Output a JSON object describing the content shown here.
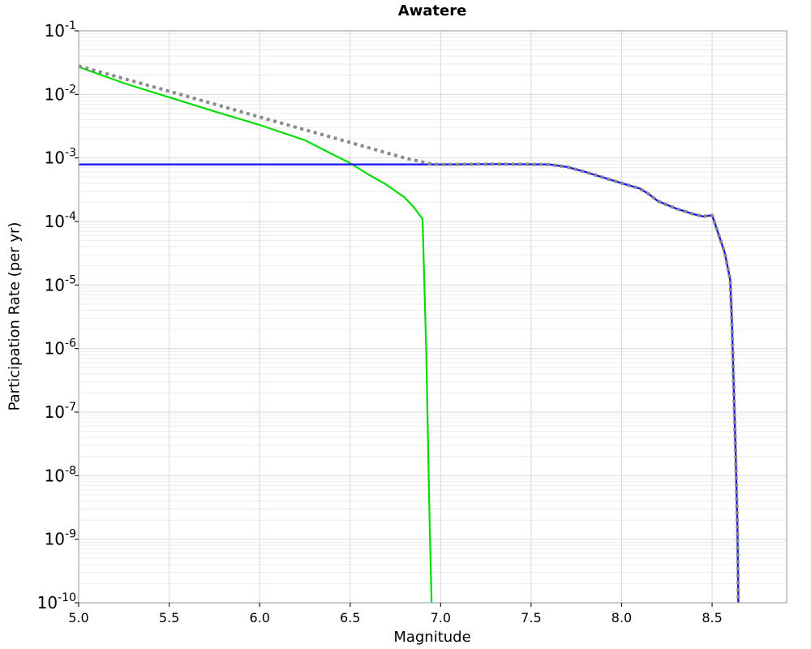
{
  "title": "Awatere",
  "chart_data": {
    "type": "line",
    "title": "Awatere",
    "xlabel": "Magnitude",
    "ylabel": "Participation Rate (per yr)",
    "xlim": [
      5.0,
      8.912
    ],
    "ylim": [
      1e-10,
      0.1
    ],
    "x_ticks": [
      5.0,
      5.5,
      6.0,
      6.5,
      7.0,
      7.5,
      8.0,
      8.5
    ],
    "x_tick_labels": [
      "5.0",
      "5.5",
      "6.0",
      "6.5",
      "7.0",
      "7.5",
      "8.0",
      "8.5"
    ],
    "y_tick_exponents": [
      -1,
      -2,
      -3,
      -4,
      -5,
      -6,
      -7,
      -8,
      -9,
      -10
    ],
    "grid": {
      "major": true,
      "minor_horizontal": true,
      "legend": "none"
    },
    "colors": {
      "major_grid": "#d9d9d9",
      "minor_grid": "#ececec",
      "border": "#a6a6a6",
      "tick": "#222222"
    },
    "series": [
      {
        "name": "dotted-gray-target-mfd",
        "style": "dotted",
        "color": "#8a8a8a",
        "width": 4,
        "points": [
          [
            5.0,
            0.028
          ],
          [
            5.5,
            0.0112
          ],
          [
            6.0,
            0.0044
          ],
          [
            6.5,
            0.00175
          ],
          [
            6.8,
            0.001
          ],
          [
            6.95,
            0.0008
          ],
          [
            7.0,
            0.00079
          ],
          [
            7.3,
            0.0008
          ],
          [
            7.6,
            0.00079
          ],
          [
            7.7,
            0.00072
          ],
          [
            7.8,
            0.0006
          ],
          [
            7.9,
            0.00049
          ],
          [
            8.0,
            0.0004
          ],
          [
            8.1,
            0.00033
          ],
          [
            8.15,
            0.00027
          ],
          [
            8.2,
            0.00021
          ],
          [
            8.3,
            0.00016
          ],
          [
            8.4,
            0.00013
          ],
          [
            8.45,
            0.00012
          ],
          [
            8.5,
            0.000125
          ],
          [
            8.53,
            7e-05
          ],
          [
            8.57,
            3.2e-05
          ],
          [
            8.6,
            1.2e-05
          ],
          [
            8.61,
            2.4e-06
          ],
          [
            8.62,
            2.3e-07
          ],
          [
            8.63,
            2.2e-08
          ],
          [
            8.64,
            1.5e-09
          ],
          [
            8.645,
            1e-10
          ]
        ]
      },
      {
        "name": "solid-green-curve",
        "style": "solid",
        "color": "#00dd00",
        "width": 2.2,
        "points": [
          [
            5.0,
            0.027
          ],
          [
            5.25,
            0.015
          ],
          [
            5.5,
            0.009
          ],
          [
            5.75,
            0.0054
          ],
          [
            6.0,
            0.0033
          ],
          [
            6.25,
            0.0019
          ],
          [
            6.4,
            0.00115
          ],
          [
            6.5,
            0.00083
          ],
          [
            6.6,
            0.00055
          ],
          [
            6.7,
            0.00038
          ],
          [
            6.8,
            0.00024
          ],
          [
            6.85,
            0.00017
          ],
          [
            6.9,
            0.00011
          ],
          [
            6.92,
            1e-06
          ],
          [
            6.94,
            1.5e-09
          ],
          [
            6.95,
            1e-10
          ]
        ]
      },
      {
        "name": "solid-blue-curve",
        "style": "solid",
        "color": "#1a1aef",
        "width": 2.4,
        "points": [
          [
            5.0,
            0.00079
          ],
          [
            6.0,
            0.00079
          ],
          [
            7.0,
            0.00079
          ],
          [
            7.3,
            0.0008
          ],
          [
            7.6,
            0.00079
          ],
          [
            7.7,
            0.00072
          ],
          [
            7.8,
            0.0006
          ],
          [
            7.9,
            0.00049
          ],
          [
            8.0,
            0.0004
          ],
          [
            8.1,
            0.00033
          ],
          [
            8.15,
            0.00027
          ],
          [
            8.2,
            0.00021
          ],
          [
            8.3,
            0.00016
          ],
          [
            8.4,
            0.00013
          ],
          [
            8.45,
            0.00012
          ],
          [
            8.5,
            0.000125
          ],
          [
            8.53,
            7e-05
          ],
          [
            8.57,
            3.2e-05
          ],
          [
            8.6,
            1.2e-05
          ],
          [
            8.61,
            2.4e-06
          ],
          [
            8.62,
            2.3e-07
          ],
          [
            8.63,
            2.2e-08
          ],
          [
            8.64,
            1.5e-09
          ],
          [
            8.645,
            1e-10
          ]
        ]
      }
    ]
  }
}
